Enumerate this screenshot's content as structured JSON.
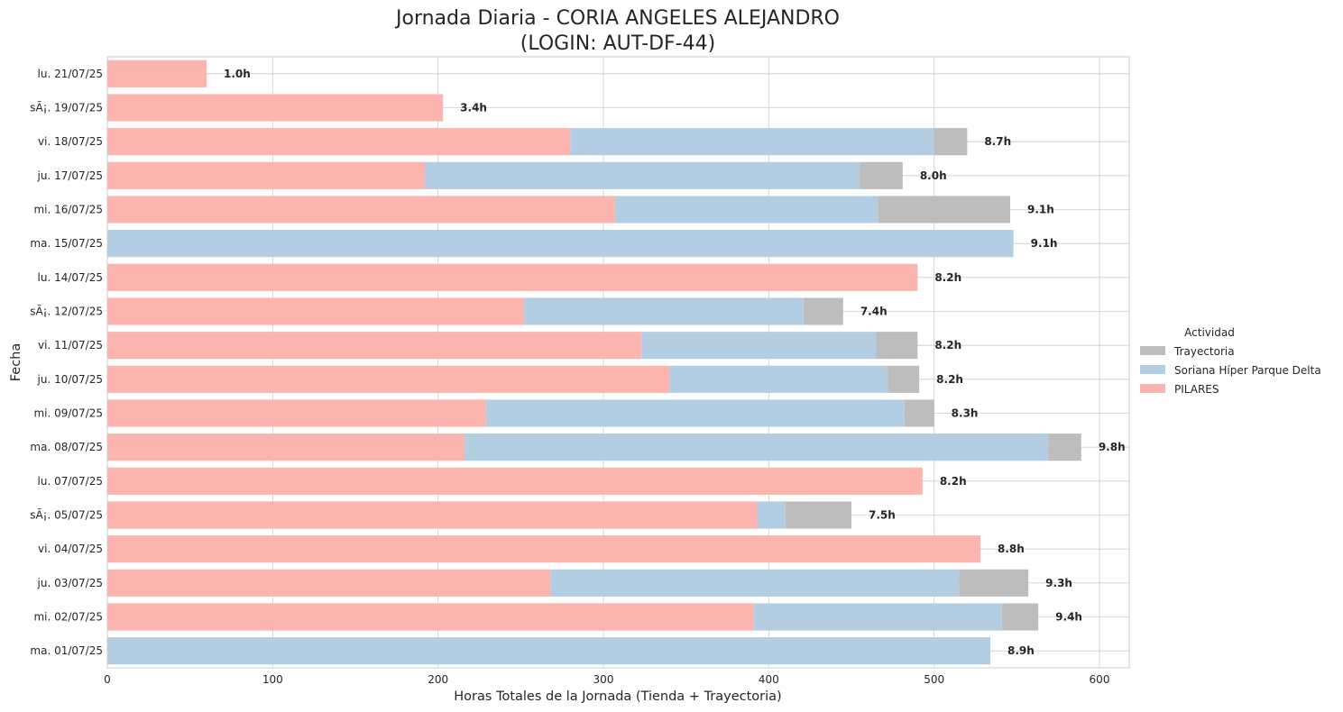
{
  "chart_data": {
    "type": "bar",
    "orientation": "horizontal",
    "stacked": true,
    "title_lines": [
      "Jornada Diaria - CORIA ANGELES ALEJANDRO",
      "(LOGIN: AUT-DF-44)"
    ],
    "xlabel": "Horas Totales de la Jornada (Tienda + Trayectoria)",
    "ylabel": "Fecha",
    "xlim": [
      0,
      618
    ],
    "xticks": [
      0,
      100,
      200,
      300,
      400,
      500,
      600
    ],
    "grid": true,
    "legend": {
      "title": "Actividad",
      "placement": "right",
      "entries": [
        "Trayectoria",
        "Soriana Híper Parque Delta",
        "PILARES"
      ]
    },
    "categories": [
      "lu. 21/07/25",
      "sÃ¡. 19/07/25",
      "vi. 18/07/25",
      "ju. 17/07/25",
      "mi. 16/07/25",
      "ma. 15/07/25",
      "lu. 14/07/25",
      "sÃ¡. 12/07/25",
      "vi. 11/07/25",
      "ju. 10/07/25",
      "mi. 09/07/25",
      "ma. 08/07/25",
      "lu. 07/07/25",
      "sÃ¡. 05/07/25",
      "vi. 04/07/25",
      "ju. 03/07/25",
      "mi. 02/07/25",
      "ma. 01/07/25"
    ],
    "series": [
      {
        "name": "PILARES",
        "color": "#fbb4ae",
        "values": [
          60,
          203,
          280,
          192,
          307,
          0,
          490,
          252,
          323,
          340,
          229,
          216,
          493,
          393,
          528,
          268,
          391,
          0
        ]
      },
      {
        "name": "Soriana Híper Parque Delta",
        "color": "#b3cde3",
        "values": [
          0,
          0,
          220,
          263,
          159,
          548,
          0,
          169,
          142,
          132,
          253,
          353,
          0,
          17,
          0,
          247,
          150,
          534
        ]
      },
      {
        "name": "Trayectoria",
        "color": "#bdbdbd",
        "values": [
          0,
          0,
          20,
          26,
          80,
          0,
          0,
          24,
          25,
          19,
          18,
          20,
          0,
          40,
          0,
          42,
          22,
          0
        ]
      }
    ],
    "total_labels": [
      "1.0h",
      "3.4h",
      "8.7h",
      "8.0h",
      "9.1h",
      "9.1h",
      "8.2h",
      "7.4h",
      "8.2h",
      "8.2h",
      "8.3h",
      "9.8h",
      "8.2h",
      "7.5h",
      "8.8h",
      "9.3h",
      "9.4h",
      "8.9h"
    ]
  }
}
